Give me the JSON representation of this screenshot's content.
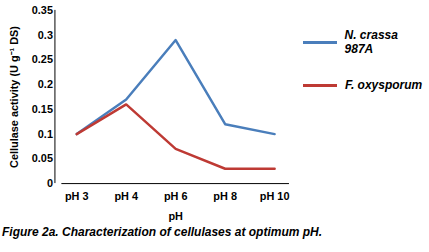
{
  "chart_data": {
    "type": "line",
    "title": "Figure 2a. Characterization of cellulases at optimum pH.",
    "x_label": "pH",
    "y_label": "Cellulase activity (U g⁻¹ DS)",
    "categories": [
      "pH 3",
      "pH 4",
      "pH 6",
      "pH 8",
      "pH 10"
    ],
    "series": [
      {
        "name": "N. crassa 987A",
        "color": "#4a7ebb",
        "values": [
          0.1,
          0.17,
          0.29,
          0.12,
          0.1
        ]
      },
      {
        "name": "F. oxysporum",
        "color": "#be3a34",
        "values": [
          0.1,
          0.16,
          0.07,
          0.03,
          0.03
        ]
      }
    ],
    "ylim": [
      0,
      0.35
    ],
    "yticks": [
      0,
      0.05,
      0.1,
      0.15,
      0.2,
      0.25,
      0.3,
      0.35
    ],
    "grid": false,
    "legend": "right"
  }
}
